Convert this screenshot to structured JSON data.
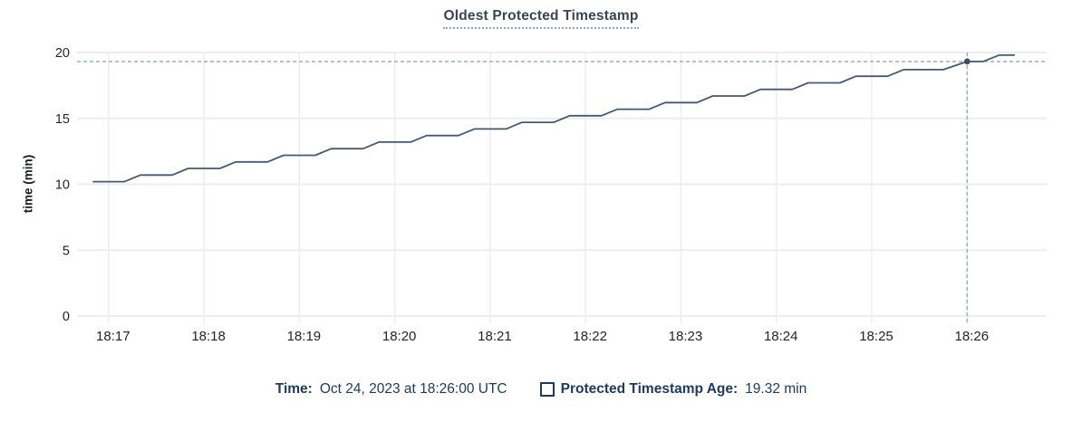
{
  "colors": {
    "title": "#394455",
    "title_underline": "#9aa3b2",
    "legend_text": "#1c3a5f",
    "tick_text": "#222528",
    "grid": "#ededed",
    "line": "#475872",
    "point": "#3e4d66",
    "crosshair": "#9fb6c2",
    "background": "#ffffff"
  },
  "footer": {
    "time_label": "Time:",
    "time_value": "Oct 24, 2023 at 18:26:00 UTC",
    "series_label": "Protected Timestamp Age:",
    "series_value": "19.32 min"
  },
  "chart_data": {
    "type": "line",
    "title": "Oldest Protected Timestamp",
    "xlabel": "",
    "ylabel": "time (min)",
    "ylim": [
      0,
      20
    ],
    "y_ticks": [
      0,
      5,
      10,
      15,
      20
    ],
    "x_ticks": [
      "18:17",
      "18:18",
      "18:19",
      "18:20",
      "18:21",
      "18:22",
      "18:23",
      "18:24",
      "18:25",
      "18:26"
    ],
    "x_window": {
      "start": "18:16:43",
      "end": "18:26:50"
    },
    "grid": true,
    "legend_position": "bottom",
    "series": [
      {
        "name": "Protected Timestamp Age",
        "unit": "min",
        "points": [
          [
            "18:16:50",
            10.2
          ],
          [
            "18:17:10",
            10.2
          ],
          [
            "18:17:20",
            10.7
          ],
          [
            "18:17:40",
            10.7
          ],
          [
            "18:17:50",
            11.2
          ],
          [
            "18:18:10",
            11.2
          ],
          [
            "18:18:20",
            11.7
          ],
          [
            "18:18:40",
            11.7
          ],
          [
            "18:18:50",
            12.2
          ],
          [
            "18:19:10",
            12.2
          ],
          [
            "18:19:20",
            12.7
          ],
          [
            "18:19:40",
            12.7
          ],
          [
            "18:19:50",
            13.2
          ],
          [
            "18:20:10",
            13.2
          ],
          [
            "18:20:20",
            13.7
          ],
          [
            "18:20:40",
            13.7
          ],
          [
            "18:20:50",
            14.2
          ],
          [
            "18:21:10",
            14.2
          ],
          [
            "18:21:20",
            14.7
          ],
          [
            "18:21:40",
            14.7
          ],
          [
            "18:21:50",
            15.2
          ],
          [
            "18:22:10",
            15.2
          ],
          [
            "18:22:20",
            15.7
          ],
          [
            "18:22:40",
            15.7
          ],
          [
            "18:22:50",
            16.2
          ],
          [
            "18:23:10",
            16.2
          ],
          [
            "18:23:20",
            16.7
          ],
          [
            "18:23:40",
            16.7
          ],
          [
            "18:23:50",
            17.2
          ],
          [
            "18:24:10",
            17.2
          ],
          [
            "18:24:20",
            17.7
          ],
          [
            "18:24:40",
            17.7
          ],
          [
            "18:24:50",
            18.2
          ],
          [
            "18:25:10",
            18.2
          ],
          [
            "18:25:20",
            18.7
          ],
          [
            "18:25:45",
            18.7
          ],
          [
            "18:26:00",
            19.32
          ],
          [
            "18:26:10",
            19.32
          ],
          [
            "18:26:20",
            19.8
          ],
          [
            "18:26:30",
            19.8
          ]
        ]
      }
    ],
    "hover_point": {
      "x": "18:26:00",
      "y": 19.32,
      "value_label": "19.32 min",
      "time_label": "Oct 24, 2023 at 18:26:00 UTC"
    }
  }
}
